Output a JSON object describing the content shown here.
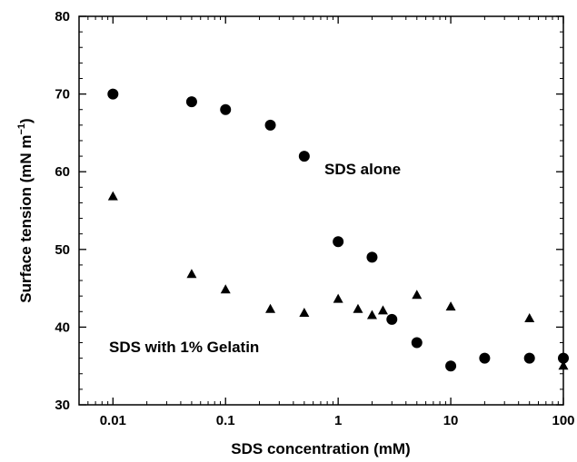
{
  "chart_data": {
    "type": "scatter",
    "title": "",
    "xlabel": "SDS concentration (mM)",
    "ylabel_main": "Surface tension (mN m",
    "ylabel_sup": "−1",
    "ylabel_close": ")",
    "xscale": "log",
    "xlim": [
      0.005,
      100
    ],
    "ylim": [
      30,
      80
    ],
    "grid": false,
    "xticks": [
      0.01,
      0.1,
      1,
      10,
      100
    ],
    "xtick_labels": [
      "0.01",
      "0.1",
      "1",
      "10",
      "100"
    ],
    "yticks": [
      30,
      40,
      50,
      60,
      70,
      80
    ],
    "ytick_labels": [
      "30",
      "40",
      "50",
      "60",
      "70",
      "80"
    ],
    "series": [
      {
        "name": "SDS alone",
        "marker": "circle",
        "color": "#000000",
        "x": [
          0.01,
          0.05,
          0.1,
          0.25,
          0.5,
          1,
          2,
          3,
          5,
          10,
          20,
          50,
          100
        ],
        "y": [
          70,
          69,
          68,
          66,
          62,
          51,
          49,
          41,
          38,
          35,
          36,
          36,
          36
        ]
      },
      {
        "name": "SDS with 1% Gelatin",
        "marker": "triangle",
        "color": "#000000",
        "x": [
          0.01,
          0.05,
          0.1,
          0.25,
          0.5,
          1,
          1.5,
          2,
          2.5,
          5,
          10,
          50,
          100
        ],
        "y": [
          56.8,
          46.8,
          44.8,
          42.3,
          41.8,
          43.6,
          42.3,
          41.5,
          42.1,
          44.1,
          42.6,
          41.1,
          35.0
        ]
      }
    ],
    "annotations": [
      {
        "id": "sds-alone-label",
        "text": "SDS alone"
      },
      {
        "id": "sds-gelatin-label",
        "text": "SDS with 1% Gelatin"
      }
    ]
  }
}
